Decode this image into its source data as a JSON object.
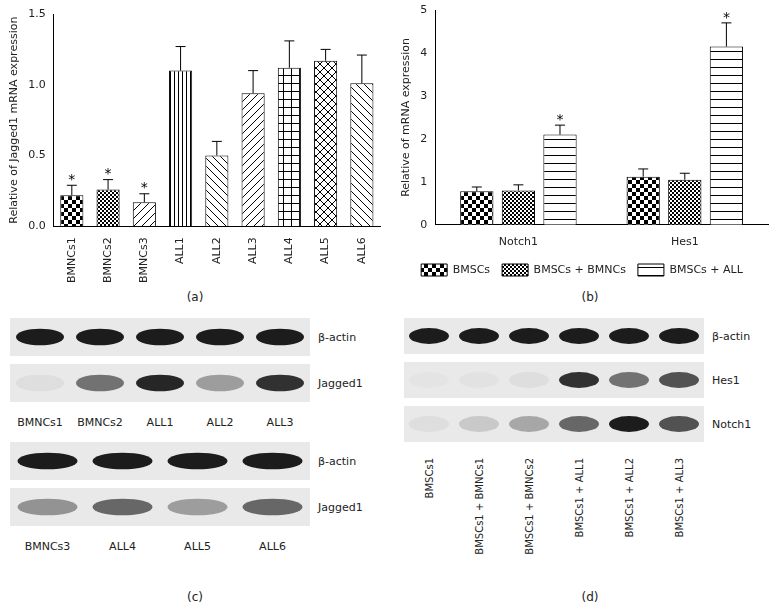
{
  "chart_data": [
    {
      "type": "bar",
      "panel": "(a)",
      "y_label": "Relative of Jagged1 mRNA expression",
      "categories": [
        "BMNCs1",
        "BMNCs2",
        "BMNCs3",
        "ALL1",
        "ALL2",
        "ALL3",
        "ALL4",
        "ALL5",
        "ALL6"
      ],
      "values": [
        0.22,
        0.26,
        0.17,
        1.1,
        0.5,
        0.94,
        1.12,
        1.17,
        1.01
      ],
      "errors": [
        0.07,
        0.07,
        0.06,
        0.17,
        0.1,
        0.16,
        0.19,
        0.08,
        0.2
      ],
      "significance": [
        "*",
        "*",
        "*",
        null,
        null,
        null,
        null,
        null,
        null
      ],
      "color": "#000000",
      "ylim": [
        0,
        1.5
      ],
      "yticks": [
        {
          "value": 0,
          "label": "0.0"
        },
        0.5,
        {
          "value": 1,
          "label": "1.0"
        },
        1.5
      ],
      "grid": false
    },
    {
      "type": "bar",
      "panel": "(b)",
      "y_label": "Relative of mRNA expression",
      "categories": [
        "Notch1",
        "Hes1"
      ],
      "series": [
        {
          "name": "BMSCs",
          "color": "#000000",
          "values": [
            0.78,
            1.12
          ],
          "errors": [
            0.1,
            0.18
          ],
          "significance": [
            null,
            null
          ]
        },
        {
          "name": "BMSCs + BMNCs",
          "color": "#000000",
          "values": [
            0.8,
            1.05
          ],
          "errors": [
            0.13,
            0.15
          ],
          "significance": [
            null,
            null
          ]
        },
        {
          "name": "BMSCs + ALL",
          "color": "#000000",
          "values": [
            2.1,
            4.15
          ],
          "errors": [
            0.22,
            0.55
          ],
          "significance": [
            "*",
            "*"
          ]
        }
      ],
      "ylim": [
        0,
        5
      ],
      "yticks": [
        0,
        1,
        2,
        3,
        4,
        5
      ],
      "grid": false,
      "legend": "bottom"
    }
  ],
  "blots": [
    {
      "panel": "(c)",
      "groups": [
        {
          "lanes": [
            "BMNCs1",
            "BMNCs2",
            "ALL1",
            "ALL2",
            "ALL3"
          ],
          "rows": [
            {
              "label": "β-actin",
              "intensity": [
                0.95,
                0.95,
                0.95,
                0.95,
                0.95
              ]
            },
            {
              "label": "Jagged1",
              "intensity": [
                0.05,
                0.55,
                0.9,
                0.35,
                0.85
              ]
            }
          ]
        },
        {
          "lanes": [
            "BMNCs3",
            "ALL4",
            "ALL5",
            "ALL6"
          ],
          "rows": [
            {
              "label": "β-actin",
              "intensity": [
                0.95,
                0.95,
                0.95,
                0.95
              ]
            },
            {
              "label": "Jagged1",
              "intensity": [
                0.4,
                0.6,
                0.35,
                0.6
              ]
            }
          ]
        }
      ]
    },
    {
      "panel": "(d)",
      "groups": [
        {
          "lanes": [
            "BMSCs1",
            "BMSCs1 + BMNCs1",
            "BMSCs1 + BMNCs2",
            "BMSCs1 + ALL1",
            "BMSCs1 + ALL2",
            "BMSCs1 + ALL3"
          ],
          "rows": [
            {
              "label": "β-actin",
              "intensity": [
                0.95,
                0.95,
                0.95,
                0.95,
                0.95,
                0.95
              ]
            },
            {
              "label": "Hes1",
              "intensity": [
                0.02,
                0.03,
                0.05,
                0.85,
                0.55,
                0.7
              ]
            },
            {
              "label": "Notch1",
              "intensity": [
                0.05,
                0.15,
                0.3,
                0.6,
                0.95,
                0.7
              ]
            }
          ]
        }
      ]
    }
  ]
}
